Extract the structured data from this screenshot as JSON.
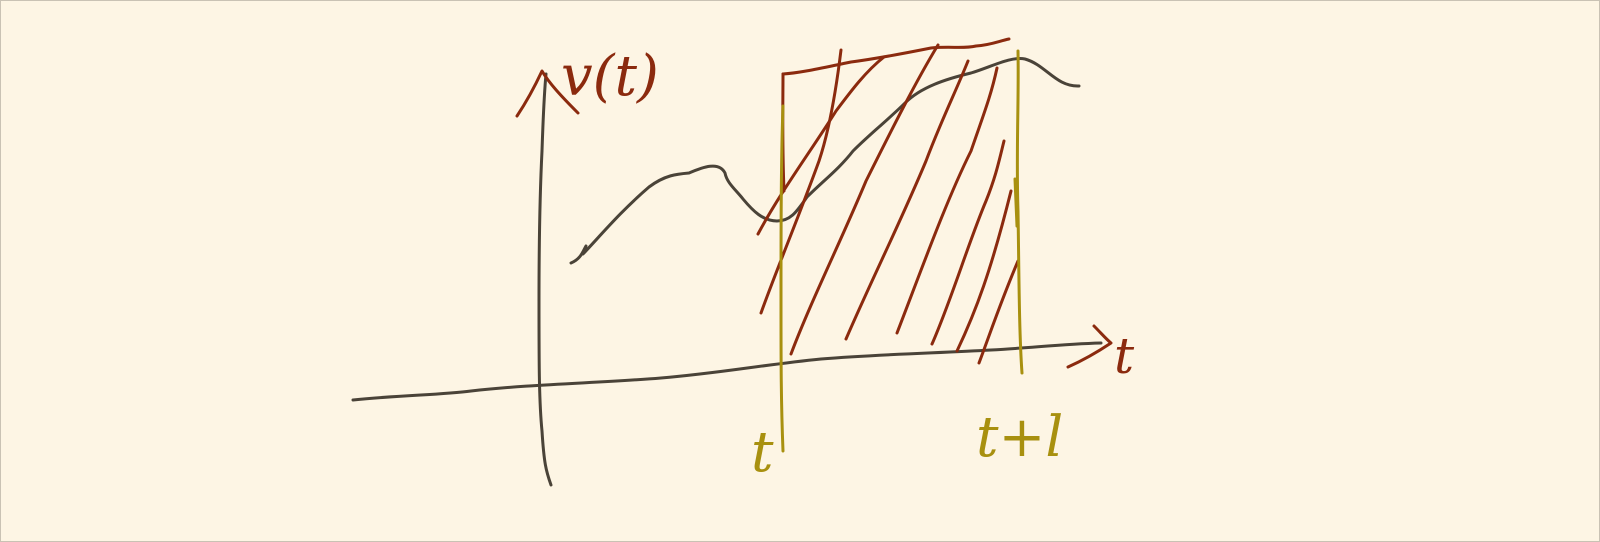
{
  "canvas": {
    "background": "#fdf5e4",
    "ink_colors": {
      "curve_and_axes": "#4a4338",
      "annotations_and_hatching": "#8b2a0e",
      "interval_bounds": "#a8900f"
    }
  },
  "labels": {
    "y_axis": "v(t)",
    "x_axis": "t",
    "interval_start": "t",
    "interval_end": "t+l"
  }
}
